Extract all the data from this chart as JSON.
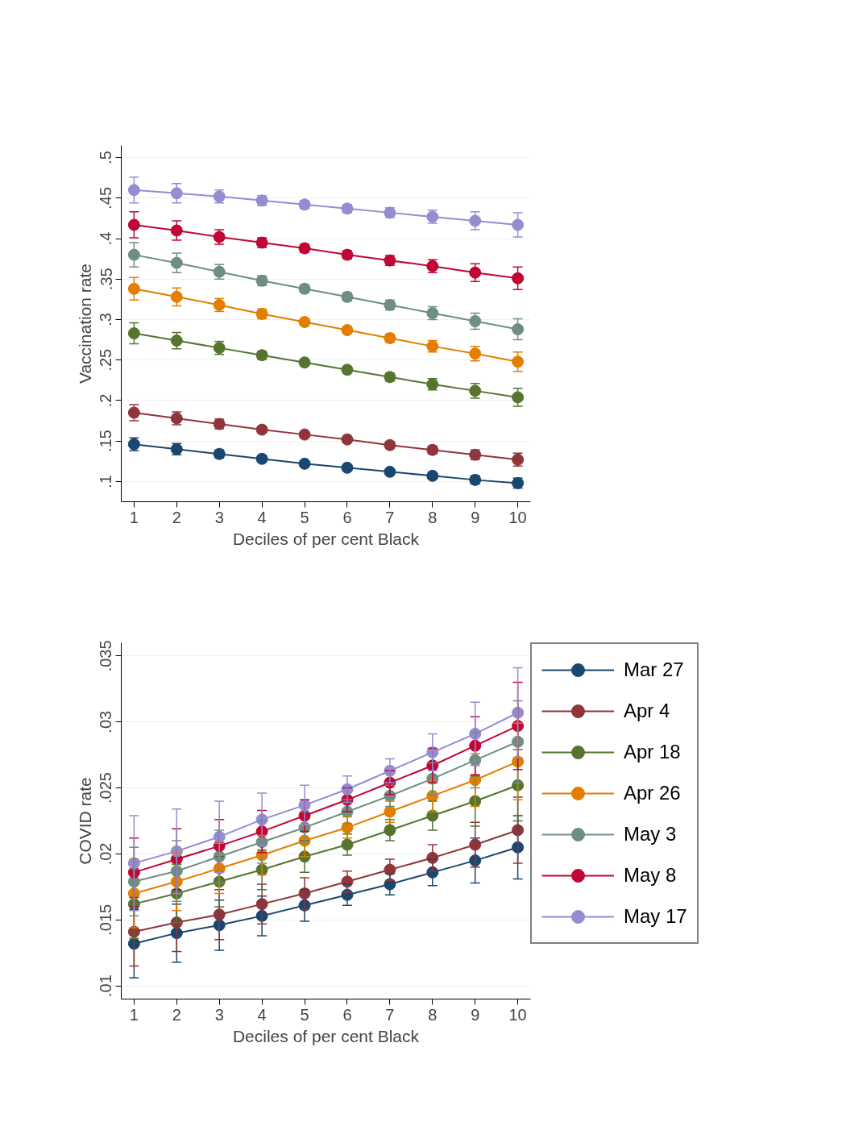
{
  "chart_data": [
    {
      "type": "line",
      "xlabel": "Deciles of per cent Black",
      "ylabel": "Vaccination rate",
      "x": [
        1,
        2,
        3,
        4,
        5,
        6,
        7,
        8,
        9,
        10
      ],
      "xlim": [
        0.7,
        10.3
      ],
      "xticks": [
        1,
        2,
        3,
        4,
        5,
        6,
        7,
        8,
        9,
        10
      ],
      "ylim": [
        0.075,
        0.515
      ],
      "yticks": [
        {
          "value": 0.1,
          "label": ".1"
        },
        {
          "value": 0.15,
          "label": ".15"
        },
        {
          "value": 0.2,
          "label": ".2"
        },
        {
          "value": 0.25,
          "label": ".25"
        },
        {
          "value": 0.3,
          "label": ".3"
        },
        {
          "value": 0.35,
          "label": ".35"
        },
        {
          "value": 0.4,
          "label": ".4"
        },
        {
          "value": 0.45,
          "label": ".45"
        },
        {
          "value": 0.5,
          "label": ".5"
        }
      ],
      "grid": "y",
      "marker": "circle",
      "line_style": "solid",
      "series": [
        {
          "color": "#1a476f",
          "values": [
            0.146,
            0.14,
            0.134,
            0.128,
            0.122,
            0.117,
            0.112,
            0.107,
            0.102,
            0.098
          ],
          "errors": [
            0.008,
            0.007,
            0.005,
            0.004,
            0.003,
            0.003,
            0.003,
            0.004,
            0.005,
            0.006
          ]
        },
        {
          "color": "#90353b",
          "values": [
            0.185,
            0.178,
            0.171,
            0.164,
            0.158,
            0.152,
            0.145,
            0.139,
            0.133,
            0.127
          ],
          "errors": [
            0.01,
            0.008,
            0.006,
            0.004,
            0.003,
            0.003,
            0.004,
            0.005,
            0.006,
            0.008
          ]
        },
        {
          "color": "#55752f",
          "values": [
            0.283,
            0.274,
            0.265,
            0.256,
            0.247,
            0.238,
            0.229,
            0.22,
            0.212,
            0.204
          ],
          "errors": [
            0.013,
            0.01,
            0.008,
            0.005,
            0.004,
            0.004,
            0.005,
            0.007,
            0.009,
            0.011
          ]
        },
        {
          "color": "#e37e00",
          "values": [
            0.338,
            0.328,
            0.318,
            0.307,
            0.297,
            0.287,
            0.277,
            0.267,
            0.258,
            0.248
          ],
          "errors": [
            0.014,
            0.011,
            0.008,
            0.006,
            0.004,
            0.004,
            0.005,
            0.007,
            0.009,
            0.012
          ]
        },
        {
          "color": "#6e8e84",
          "values": [
            0.38,
            0.37,
            0.359,
            0.348,
            0.338,
            0.328,
            0.318,
            0.308,
            0.298,
            0.288
          ],
          "errors": [
            0.015,
            0.012,
            0.009,
            0.006,
            0.005,
            0.005,
            0.006,
            0.008,
            0.01,
            0.013
          ]
        },
        {
          "color": "#c10534",
          "values": [
            0.417,
            0.41,
            0.402,
            0.395,
            0.388,
            0.38,
            0.373,
            0.366,
            0.358,
            0.351
          ],
          "errors": [
            0.016,
            0.012,
            0.009,
            0.006,
            0.005,
            0.005,
            0.006,
            0.008,
            0.011,
            0.014
          ]
        },
        {
          "color": "#938dd2",
          "values": [
            0.46,
            0.456,
            0.452,
            0.447,
            0.442,
            0.437,
            0.432,
            0.427,
            0.422,
            0.417
          ],
          "errors": [
            0.016,
            0.012,
            0.008,
            0.006,
            0.005,
            0.005,
            0.006,
            0.008,
            0.011,
            0.015
          ]
        }
      ]
    },
    {
      "type": "line",
      "xlabel": "Deciles of per cent Black",
      "ylabel": "COVID rate",
      "x": [
        1,
        2,
        3,
        4,
        5,
        6,
        7,
        8,
        9,
        10
      ],
      "xlim": [
        0.7,
        10.3
      ],
      "xticks": [
        1,
        2,
        3,
        4,
        5,
        6,
        7,
        8,
        9,
        10
      ],
      "ylim": [
        0.009,
        0.036
      ],
      "yticks": [
        {
          "value": 0.01,
          "label": ".01"
        },
        {
          "value": 0.015,
          "label": ".015"
        },
        {
          "value": 0.02,
          "label": ".02"
        },
        {
          "value": 0.025,
          "label": ".025"
        },
        {
          "value": 0.03,
          "label": ".03"
        },
        {
          "value": 0.035,
          "label": ".035"
        }
      ],
      "grid": "y",
      "legend": "right",
      "marker": "circle",
      "line_style": "solid",
      "series": [
        {
          "name": "Mar 27",
          "color": "#1a476f",
          "values": [
            0.0132,
            0.014,
            0.0146,
            0.0153,
            0.0161,
            0.0169,
            0.0177,
            0.0186,
            0.0195,
            0.0205
          ],
          "errors": [
            0.0026,
            0.0022,
            0.0019,
            0.0015,
            0.0012,
            0.0008,
            0.0008,
            0.001,
            0.0017,
            0.0024
          ]
        },
        {
          "name": "Apr 4",
          "color": "#90353b",
          "values": [
            0.0141,
            0.0148,
            0.0154,
            0.0162,
            0.017,
            0.0179,
            0.0188,
            0.0197,
            0.0207,
            0.0218
          ],
          "errors": [
            0.0026,
            0.0022,
            0.0019,
            0.0015,
            0.0012,
            0.0008,
            0.0008,
            0.001,
            0.0017,
            0.0025
          ]
        },
        {
          "name": "Apr 18",
          "color": "#55752f",
          "values": [
            0.0162,
            0.017,
            0.0179,
            0.0188,
            0.0198,
            0.0207,
            0.0218,
            0.0229,
            0.024,
            0.0252
          ],
          "errors": [
            0.0026,
            0.0022,
            0.0019,
            0.0015,
            0.0012,
            0.0008,
            0.0008,
            0.0011,
            0.0019,
            0.0027
          ]
        },
        {
          "name": "Apr 26",
          "color": "#e37e00",
          "values": [
            0.017,
            0.0179,
            0.0189,
            0.0199,
            0.021,
            0.022,
            0.0232,
            0.0244,
            0.0256,
            0.027
          ],
          "errors": [
            0.0026,
            0.0022,
            0.0019,
            0.0015,
            0.0012,
            0.0008,
            0.0008,
            0.0012,
            0.002,
            0.0029
          ]
        },
        {
          "name": "May 3",
          "color": "#6e8e84",
          "values": [
            0.0179,
            0.0187,
            0.0198,
            0.0209,
            0.022,
            0.0232,
            0.0244,
            0.0257,
            0.0271,
            0.0285
          ],
          "errors": [
            0.0026,
            0.0023,
            0.002,
            0.0016,
            0.0012,
            0.0009,
            0.0008,
            0.0012,
            0.0021,
            0.0031
          ]
        },
        {
          "name": "May 8",
          "color": "#c10534",
          "values": [
            0.0186,
            0.0196,
            0.0206,
            0.0217,
            0.0229,
            0.0241,
            0.0254,
            0.0267,
            0.0282,
            0.0297
          ],
          "errors": [
            0.0026,
            0.0023,
            0.002,
            0.0016,
            0.0012,
            0.0009,
            0.0009,
            0.0013,
            0.0022,
            0.0033
          ]
        },
        {
          "name": "May 17",
          "color": "#938dd2",
          "values": [
            0.0193,
            0.0202,
            0.0213,
            0.0226,
            0.0237,
            0.0249,
            0.0263,
            0.0277,
            0.0291,
            0.0307
          ],
          "errors": [
            0.0036,
            0.0032,
            0.0027,
            0.002,
            0.0015,
            0.001,
            0.0009,
            0.0014,
            0.0024,
            0.0034
          ]
        }
      ]
    }
  ]
}
